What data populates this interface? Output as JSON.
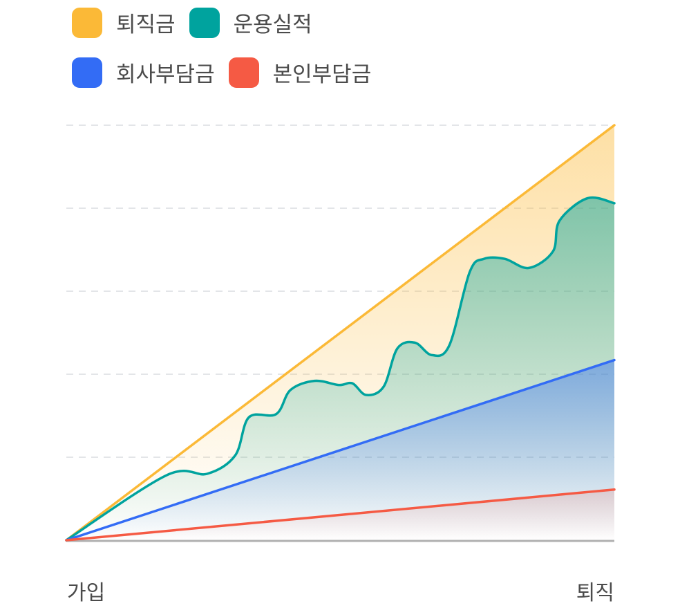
{
  "chart_data": {
    "type": "area",
    "xlabel": "",
    "ylabel": "",
    "x_tick_labels": [
      "가입",
      "퇴직"
    ],
    "xlim": [
      0,
      100
    ],
    "ylim": [
      0,
      5
    ],
    "grid": true,
    "legend_placement": "top-left",
    "legend": [
      "퇴직금",
      "운용실적",
      "회사부담금",
      "본인부담금"
    ],
    "series": [
      {
        "name": "퇴직금",
        "color": "#FBB937",
        "x": [
          0,
          100
        ],
        "y": [
          0,
          5
        ]
      },
      {
        "name": "운용실적",
        "color": "#00A39E",
        "x": [
          0,
          18.2,
          25.7,
          30.8,
          33.3,
          38.3,
          40.9,
          45.3,
          49.7,
          52.2,
          54.7,
          57.9,
          60.4,
          63.6,
          66.7,
          69.9,
          73.6,
          76.2,
          80,
          84.4,
          88.8,
          90.0,
          95.1,
          100
        ],
        "y": [
          0,
          0.78,
          0.8,
          1.02,
          1.48,
          1.52,
          1.81,
          1.92,
          1.87,
          1.89,
          1.75,
          1.85,
          2.31,
          2.38,
          2.23,
          2.35,
          3.23,
          3.39,
          3.39,
          3.28,
          3.48,
          3.85,
          4.12,
          4.06
        ]
      },
      {
        "name": "회사부담금",
        "color": "#336CF5",
        "x": [
          0,
          100
        ],
        "y": [
          0,
          2.17
        ]
      },
      {
        "name": "본인부담금",
        "color": "#F55A44",
        "x": [
          0,
          100
        ],
        "y": [
          0,
          0.61
        ]
      }
    ]
  }
}
